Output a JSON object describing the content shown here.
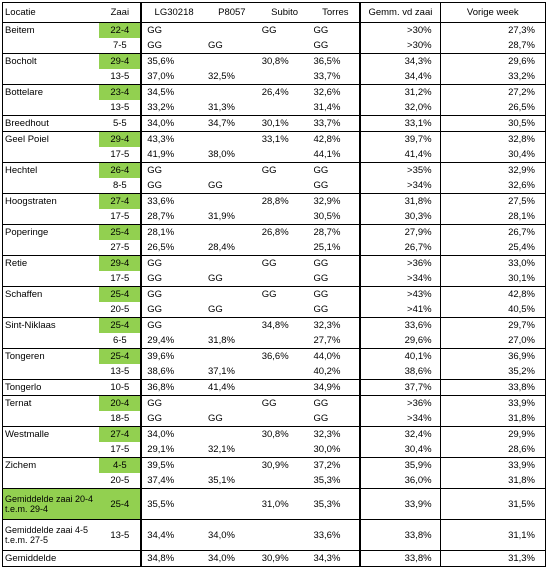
{
  "headers": {
    "locatie": "Locatie",
    "zaai": "Zaai",
    "lg": "LG30218",
    "p8057": "P8057",
    "subito": "Subito",
    "torres": "Torres",
    "gemm": "Gemm. vd zaai",
    "vorige": "Vorige week"
  },
  "colors": {
    "highlight": "#92d050",
    "grid": "#000000"
  },
  "rows": [
    {
      "loc": "Beitem",
      "zaai": "22-4",
      "green": true,
      "lg": "GG",
      "p": "",
      "sub": "GG",
      "tor": "GG",
      "gem": ">30%",
      "vw": "27,3%",
      "top": true
    },
    {
      "loc": "",
      "zaai": "7-5",
      "green": false,
      "lg": "GG",
      "p": "GG",
      "sub": "",
      "tor": "GG",
      "gem": ">30%",
      "vw": "28,7%",
      "top": false
    },
    {
      "loc": "Bocholt",
      "zaai": "29-4",
      "green": true,
      "lg": "35,6%",
      "p": "",
      "sub": "30,8%",
      "tor": "36,5%",
      "gem": "34,3%",
      "vw": "29,6%",
      "top": true
    },
    {
      "loc": "",
      "zaai": "13-5",
      "green": false,
      "lg": "37,0%",
      "p": "32,5%",
      "sub": "",
      "tor": "33,7%",
      "gem": "34,4%",
      "vw": "33,2%",
      "top": false
    },
    {
      "loc": "Bottelare",
      "zaai": "23-4",
      "green": true,
      "lg": "34,5%",
      "p": "",
      "sub": "26,4%",
      "tor": "32,6%",
      "gem": "31,2%",
      "vw": "27,2%",
      "top": true
    },
    {
      "loc": "",
      "zaai": "13-5",
      "green": false,
      "lg": "33,2%",
      "p": "31,3%",
      "sub": "",
      "tor": "31,4%",
      "gem": "32,0%",
      "vw": "26,5%",
      "top": false
    },
    {
      "loc": "Breedhout",
      "zaai": "5-5",
      "green": false,
      "lg": "34,0%",
      "p": "34,7%",
      "sub": "30,1%",
      "tor": "33,7%",
      "gem": "33,1%",
      "vw": "30,5%",
      "top": true
    },
    {
      "loc": "Geel Poiel",
      "zaai": "29-4",
      "green": true,
      "lg": "43,3%",
      "p": "",
      "sub": "33,1%",
      "tor": "42,8%",
      "gem": "39,7%",
      "vw": "32,8%",
      "top": true
    },
    {
      "loc": "",
      "zaai": "17-5",
      "green": false,
      "lg": "41,9%",
      "p": "38,0%",
      "sub": "",
      "tor": "44,1%",
      "gem": "41,4%",
      "vw": "30,4%",
      "top": false
    },
    {
      "loc": "Hechtel",
      "zaai": "26-4",
      "green": true,
      "lg": "GG",
      "p": "",
      "sub": "GG",
      "tor": "GG",
      "gem": ">35%",
      "vw": "32,9%",
      "top": true
    },
    {
      "loc": "",
      "zaai": "8-5",
      "green": false,
      "lg": "GG",
      "p": "GG",
      "sub": "",
      "tor": "GG",
      "gem": ">34%",
      "vw": "32,6%",
      "top": false
    },
    {
      "loc": "Hoogstraten",
      "zaai": "27-4",
      "green": true,
      "lg": "33,6%",
      "p": "",
      "sub": "28,8%",
      "tor": "32,9%",
      "gem": "31,8%",
      "vw": "27,5%",
      "top": true
    },
    {
      "loc": "",
      "zaai": "17-5",
      "green": false,
      "lg": "28,7%",
      "p": "31,9%",
      "sub": "",
      "tor": "30,5%",
      "gem": "30,3%",
      "vw": "28,1%",
      "top": false
    },
    {
      "loc": "Poperinge",
      "zaai": "25-4",
      "green": true,
      "lg": "28,1%",
      "p": "",
      "sub": "26,8%",
      "tor": "28,7%",
      "gem": "27,9%",
      "vw": "26,7%",
      "top": true
    },
    {
      "loc": "",
      "zaai": "27-5",
      "green": false,
      "lg": "26,5%",
      "p": "28,4%",
      "sub": "",
      "tor": "25,1%",
      "gem": "26,7%",
      "vw": "25,4%",
      "top": false
    },
    {
      "loc": "Retie",
      "zaai": "29-4",
      "green": true,
      "lg": "GG",
      "p": "",
      "sub": "GG",
      "tor": "GG",
      "gem": ">36%",
      "vw": "33,0%",
      "top": true
    },
    {
      "loc": "",
      "zaai": "17-5",
      "green": false,
      "lg": "GG",
      "p": "GG",
      "sub": "",
      "tor": "GG",
      "gem": ">34%",
      "vw": "30,1%",
      "top": false
    },
    {
      "loc": "Schaffen",
      "zaai": "25-4",
      "green": true,
      "lg": "GG",
      "p": "",
      "sub": "GG",
      "tor": "GG",
      "gem": ">43%",
      "vw": "42,8%",
      "top": true
    },
    {
      "loc": "",
      "zaai": "20-5",
      "green": false,
      "lg": "GG",
      "p": "GG",
      "sub": "",
      "tor": "GG",
      "gem": ">41%",
      "vw": "40,5%",
      "top": false
    },
    {
      "loc": "Sint-Niklaas",
      "zaai": "25-4",
      "green": true,
      "lg": "GG",
      "p": "",
      "sub": "34,8%",
      "tor": "32,3%",
      "gem": "33,6%",
      "vw": "29,7%",
      "top": true
    },
    {
      "loc": "",
      "zaai": "6-5",
      "green": false,
      "lg": "29,4%",
      "p": "31,8%",
      "sub": "",
      "tor": "27,7%",
      "gem": "29,6%",
      "vw": "27,0%",
      "top": false
    },
    {
      "loc": "Tongeren",
      "zaai": "25-4",
      "green": true,
      "lg": "39,6%",
      "p": "",
      "sub": "36,6%",
      "tor": "44,0%",
      "gem": "40,1%",
      "vw": "36,9%",
      "top": true
    },
    {
      "loc": "",
      "zaai": "13-5",
      "green": false,
      "lg": "38,6%",
      "p": "37,1%",
      "sub": "",
      "tor": "40,2%",
      "gem": "38,6%",
      "vw": "35,2%",
      "top": false
    },
    {
      "loc": "Tongerlo",
      "zaai": "10-5",
      "green": false,
      "lg": "36,8%",
      "p": "41,4%",
      "sub": "",
      "tor": "34,9%",
      "gem": "37,7%",
      "vw": "33,8%",
      "top": true
    },
    {
      "loc": "Ternat",
      "zaai": "20-4",
      "green": true,
      "lg": "GG",
      "p": "",
      "sub": "GG",
      "tor": "GG",
      "gem": ">36%",
      "vw": "33,9%",
      "top": true
    },
    {
      "loc": "",
      "zaai": "18-5",
      "green": false,
      "lg": "GG",
      "p": "GG",
      "sub": "",
      "tor": "GG",
      "gem": ">34%",
      "vw": "31,8%",
      "top": false
    },
    {
      "loc": "Westmalle",
      "zaai": "27-4",
      "green": true,
      "lg": "34,0%",
      "p": "",
      "sub": "30,8%",
      "tor": "32,3%",
      "gem": "32,4%",
      "vw": "29,9%",
      "top": true
    },
    {
      "loc": "",
      "zaai": "17-5",
      "green": false,
      "lg": "29,1%",
      "p": "32,1%",
      "sub": "",
      "tor": "30,0%",
      "gem": "30,4%",
      "vw": "28,6%",
      "top": false
    },
    {
      "loc": "Zichem",
      "zaai": "4-5",
      "green": true,
      "lg": "39,5%",
      "p": "",
      "sub": "30,9%",
      "tor": "37,2%",
      "gem": "35,9%",
      "vw": "33,9%",
      "top": true
    },
    {
      "loc": "",
      "zaai": "20-5",
      "green": false,
      "lg": "37,4%",
      "p": "35,1%",
      "sub": "",
      "tor": "35,3%",
      "gem": "36,0%",
      "vw": "31,8%",
      "top": false
    }
  ],
  "averages": [
    {
      "label": "Gemiddelde zaai 20-4 t.e.m. 29-4",
      "zaai": "25-4",
      "green": true,
      "lg": "35,5%",
      "p": "",
      "sub": "31,0%",
      "tor": "35,3%",
      "gem": "33,9%",
      "vw": "31,5%"
    },
    {
      "label": "Gemiddelde zaai 4-5 t.e.m. 27-5",
      "zaai": "13-5",
      "green": false,
      "lg": "34,4%",
      "p": "34,0%",
      "sub": "",
      "tor": "33,6%",
      "gem": "33,8%",
      "vw": "31,1%"
    },
    {
      "label": "Gemiddelde",
      "zaai": "",
      "green": false,
      "lg": "34,8%",
      "p": "34,0%",
      "sub": "30,9%",
      "tor": "34,3%",
      "gem": "33,8%",
      "vw": "31,3%"
    }
  ]
}
